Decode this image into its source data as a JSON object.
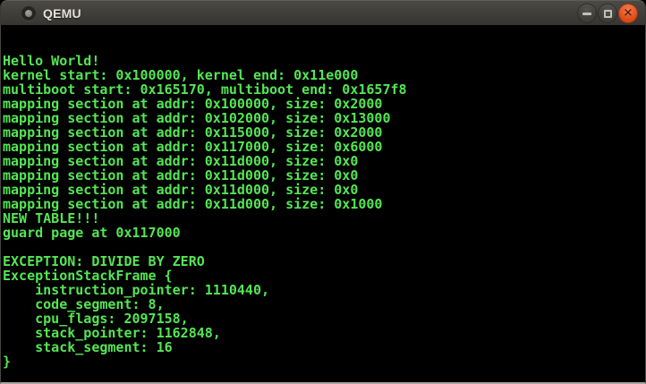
{
  "window": {
    "title": "QEMU",
    "icon": "app-window-icon",
    "controls": [
      {
        "name": "minimize",
        "label": "minimize"
      },
      {
        "name": "maximize",
        "label": "maximize"
      },
      {
        "name": "close",
        "label": "close"
      }
    ]
  },
  "terminal": {
    "columns": 80,
    "rows": 25,
    "lines": [
      "",
      "",
      "Hello World!",
      "kernel start: 0x100000, kernel end: 0x11e000",
      "multiboot start: 0x165170, multiboot end: 0x1657f8",
      "mapping section at addr: 0x100000, size: 0x2000",
      "mapping section at addr: 0x102000, size: 0x13000",
      "mapping section at addr: 0x115000, size: 0x2000",
      "mapping section at addr: 0x117000, size: 0x6000",
      "mapping section at addr: 0x11d000, size: 0x0",
      "mapping section at addr: 0x11d000, size: 0x0",
      "mapping section at addr: 0x11d000, size: 0x0",
      "mapping section at addr: 0x11d000, size: 0x1000",
      "NEW TABLE!!!",
      "guard page at 0x117000",
      "",
      "EXCEPTION: DIVIDE BY ZERO",
      "ExceptionStackFrame {",
      "    instruction_pointer: 1110440,",
      "    code_segment: 8,",
      "    cpu_flags: 2097158,",
      "    stack_pointer: 1162848,",
      "    stack_segment: 16",
      "}",
      ""
    ]
  },
  "colors": {
    "terminal_background": "#000000",
    "text_green": "#54e654",
    "titlebar_gray": "#403e3a",
    "close_button_orange": "#dd4814",
    "window_border": "#474540",
    "bottom_border": "#a9a69f"
  }
}
